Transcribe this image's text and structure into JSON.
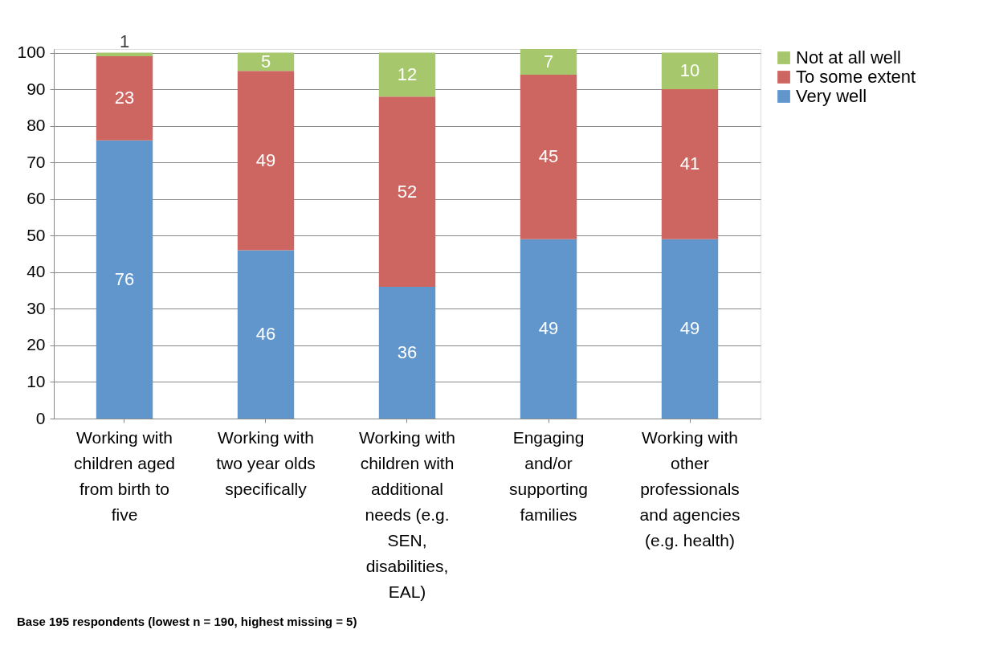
{
  "chart_data": {
    "type": "bar",
    "stacked": true,
    "categories": [
      "Working with children aged from birth to five",
      "Working with two year olds specifically",
      "Working with children with additional needs (e.g. SEN, disabilities, EAL)",
      "Engaging and/or supporting families",
      "Working with other professionals and agencies (e.g. health)"
    ],
    "series": [
      {
        "name": "Very well",
        "color": "#6096cb",
        "values": [
          76,
          46,
          36,
          49,
          49
        ]
      },
      {
        "name": "To some extent",
        "color": "#cd6660",
        "values": [
          23,
          49,
          52,
          45,
          41
        ]
      },
      {
        "name": "Not at all well",
        "color": "#a7c76c",
        "values": [
          1,
          5,
          12,
          7,
          10
        ]
      }
    ],
    "ylim": [
      0,
      101
    ],
    "yticks": [
      0,
      10,
      20,
      30,
      40,
      50,
      60,
      70,
      80,
      90,
      100
    ],
    "grid": "y",
    "legend": "right",
    "data_labels": true,
    "annotations": [
      "Base 195 respondents (lowest n = 190, highest missing = 5)"
    ]
  }
}
